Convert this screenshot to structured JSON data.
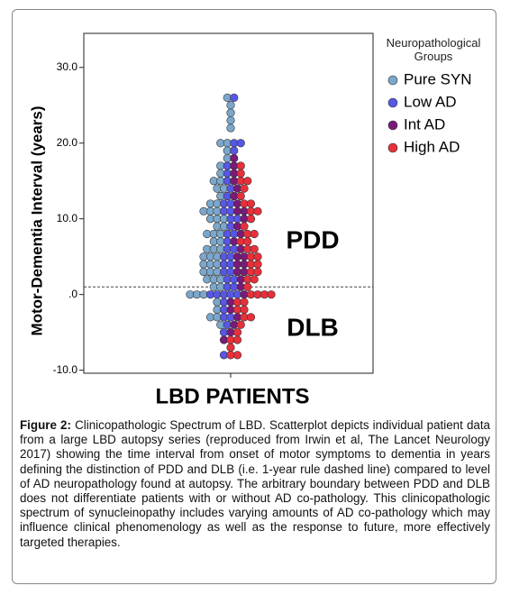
{
  "chart_data": {
    "type": "scatter",
    "y_label": "Motor-Dementia Interval (years)",
    "x_label": "LBD PATIENTS",
    "ylim": [
      -10.4,
      34.5
    ],
    "yticks": [
      {
        "value": 30,
        "label": "30.0"
      },
      {
        "value": 20,
        "label": "20.0"
      },
      {
        "value": 10,
        "label": "10.0"
      },
      {
        "value": 0,
        "label": ".0"
      },
      {
        "value": -10,
        "label": "-10.0"
      }
    ],
    "reference_line": 1,
    "annotations": [
      "PDD",
      "DLB"
    ],
    "legend_title": "Neuropathological Groups",
    "legend": "top-right",
    "series": [
      {
        "name": "Pure SYN",
        "color": "#7ba7cc",
        "values": [
          26,
          25,
          24,
          23,
          22,
          20,
          20,
          19,
          18,
          17,
          16,
          15,
          15,
          14,
          14,
          13,
          12,
          12,
          11,
          11,
          11,
          10,
          10,
          10,
          9,
          9,
          8,
          8,
          8,
          7,
          7,
          6,
          6,
          6,
          5,
          5,
          5,
          4,
          4,
          4,
          3,
          3,
          3,
          2,
          2,
          2,
          1,
          1,
          0,
          0,
          0,
          -1,
          -2,
          -3,
          -3,
          -4
        ]
      },
      {
        "name": "Low AD",
        "color": "#5757e6",
        "values": [
          26,
          20,
          20,
          19,
          17,
          16,
          15,
          14,
          13,
          12,
          12,
          11,
          11,
          10,
          10,
          9,
          8,
          8,
          7,
          6,
          6,
          5,
          5,
          4,
          4,
          3,
          3,
          2,
          2,
          1,
          1,
          0,
          0,
          0,
          0,
          0,
          -1,
          -2,
          -3,
          -3,
          -4,
          -5,
          -8
        ]
      },
      {
        "name": "Int AD",
        "color": "#7a1a7a",
        "values": [
          18,
          17,
          16,
          15,
          14,
          13,
          12,
          11,
          11,
          10,
          9,
          8,
          7,
          6,
          5,
          5,
          4,
          4,
          3,
          3,
          2,
          1,
          0,
          -1,
          -2,
          -3,
          -4,
          -5,
          -6
        ]
      },
      {
        "name": "High AD",
        "color": "#e8303a",
        "values": [
          17,
          16,
          15,
          15,
          14,
          13,
          12,
          12,
          11,
          11,
          10,
          9,
          8,
          8,
          7,
          7,
          6,
          6,
          5,
          5,
          4,
          4,
          3,
          3,
          2,
          2,
          1,
          0,
          0,
          0,
          0,
          -1,
          -1,
          -2,
          -2,
          -3,
          -3,
          -4,
          -5,
          -6,
          -6,
          -7,
          -8,
          -8
        ]
      }
    ]
  },
  "caption": {
    "label": "Figure 2:",
    "text": "Clinicopathologic Spectrum of LBD. Scatterplot depicts individual patient data from a large LBD autopsy series (reproduced from Irwin et al, The Lancet Neurology 2017) showing the time interval from onset of motor symptoms to dementia in years defining the distinction of PDD and DLB (i.e. 1-year rule dashed line) compared to level of AD neuropathology found at autopsy. The arbitrary boundary between PDD and DLB does not differentiate patients with or without AD co-pathology. This clinicopathologic spectrum of synucleinopathy includes varying amounts of AD co-pathology which may influence clinical phenomenology as well as the response to future, more effectively targeted therapies."
  }
}
